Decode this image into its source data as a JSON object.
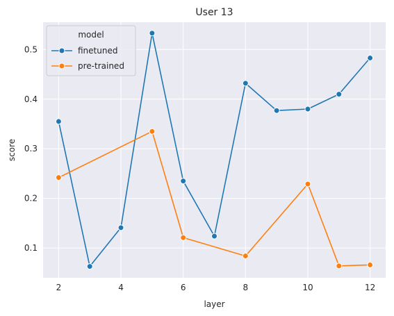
{
  "chart_data": {
    "type": "line",
    "title": "User 13",
    "xlabel": "layer",
    "ylabel": "score",
    "xlim": [
      1.5,
      12.5
    ],
    "ylim": [
      0.04,
      0.555
    ],
    "xticks": [
      2,
      4,
      6,
      8,
      10,
      12
    ],
    "yticks": [
      0.1,
      0.2,
      0.3,
      0.4,
      0.5
    ],
    "grid": true,
    "legend": {
      "title": "model",
      "position": "top-left"
    },
    "series": [
      {
        "name": "finetuned",
        "color": "#1f77b4",
        "x": [
          2,
          3,
          4,
          5,
          6,
          7,
          8,
          9,
          10,
          11,
          12
        ],
        "y": [
          0.355,
          0.063,
          0.141,
          0.533,
          0.235,
          0.124,
          0.432,
          0.377,
          0.38,
          0.41,
          0.483
        ]
      },
      {
        "name": "pre-trained",
        "color": "#ff7f0e",
        "x": [
          2,
          5,
          6,
          8,
          10,
          11,
          12
        ],
        "y": [
          0.242,
          0.335,
          0.121,
          0.084,
          0.229,
          0.064,
          0.066
        ]
      }
    ]
  }
}
